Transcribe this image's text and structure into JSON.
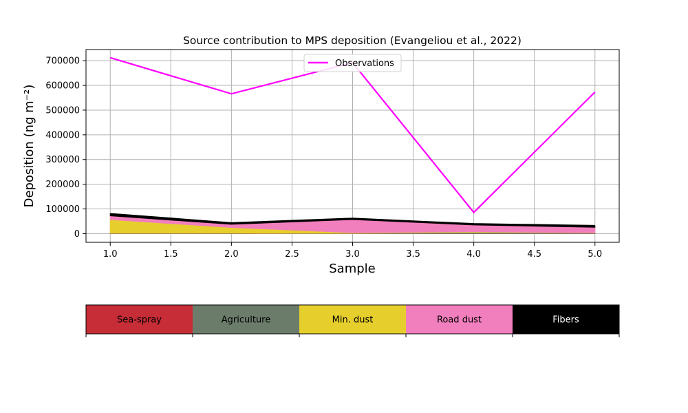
{
  "chart_data": {
    "type": "area",
    "title": "Source contribution to MPS deposition (Evangeliou et al., 2022)",
    "xlabel": "Sample",
    "ylabel": "Deposition (ng m⁻²)",
    "xlim": [
      0.8,
      5.2
    ],
    "ylim": [
      -35000,
      745000
    ],
    "x_ticks": [
      1.0,
      1.5,
      2.0,
      2.5,
      3.0,
      3.5,
      4.0,
      4.5,
      5.0
    ],
    "x_tick_labels": [
      "1.0",
      "1.5",
      "2.0",
      "2.5",
      "3.0",
      "3.5",
      "4.0",
      "4.5",
      "5.0"
    ],
    "y_ticks": [
      0,
      100000,
      200000,
      300000,
      400000,
      500000,
      600000,
      700000
    ],
    "y_tick_labels": [
      "0",
      "100000",
      "200000",
      "300000",
      "400000",
      "500000",
      "600000",
      "700000"
    ],
    "grid": true,
    "legend_position": "upper center",
    "x": [
      1,
      2,
      3,
      4,
      5
    ],
    "stacked_series": [
      {
        "name": "Sea-spray",
        "color": "#c62d37",
        "values": [
          1000,
          800,
          500,
          500,
          500
        ]
      },
      {
        "name": "Agriculture",
        "color": "#6b7c6b",
        "values": [
          1000,
          1000,
          1000,
          5000,
          2000
        ]
      },
      {
        "name": "Min. dust",
        "color": "#e6cf2d",
        "values": [
          55000,
          23000,
          2500,
          2500,
          1000
        ]
      },
      {
        "name": "Road dust",
        "color": "#f27fbd",
        "values": [
          15000,
          13000,
          53000,
          27000,
          22000
        ]
      },
      {
        "name": "Fibers",
        "color": "#000000",
        "values": [
          8000,
          5000,
          4000,
          4000,
          6000
        ]
      }
    ],
    "observations": {
      "name": "Observations",
      "color": "#ff00ff",
      "values": [
        712000,
        566000,
        692000,
        86000,
        573000
      ]
    }
  },
  "source_colorbar": [
    {
      "label": "Sea-spray",
      "color": "#c62d37",
      "text_color": "#000000"
    },
    {
      "label": "Agriculture",
      "color": "#6b7c6b",
      "text_color": "#000000"
    },
    {
      "label": "Min. dust",
      "color": "#e6cf2d",
      "text_color": "#000000"
    },
    {
      "label": "Road dust",
      "color": "#f27fbd",
      "text_color": "#000000"
    },
    {
      "label": "Fibers",
      "color": "#000000",
      "text_color": "#ffffff"
    }
  ]
}
